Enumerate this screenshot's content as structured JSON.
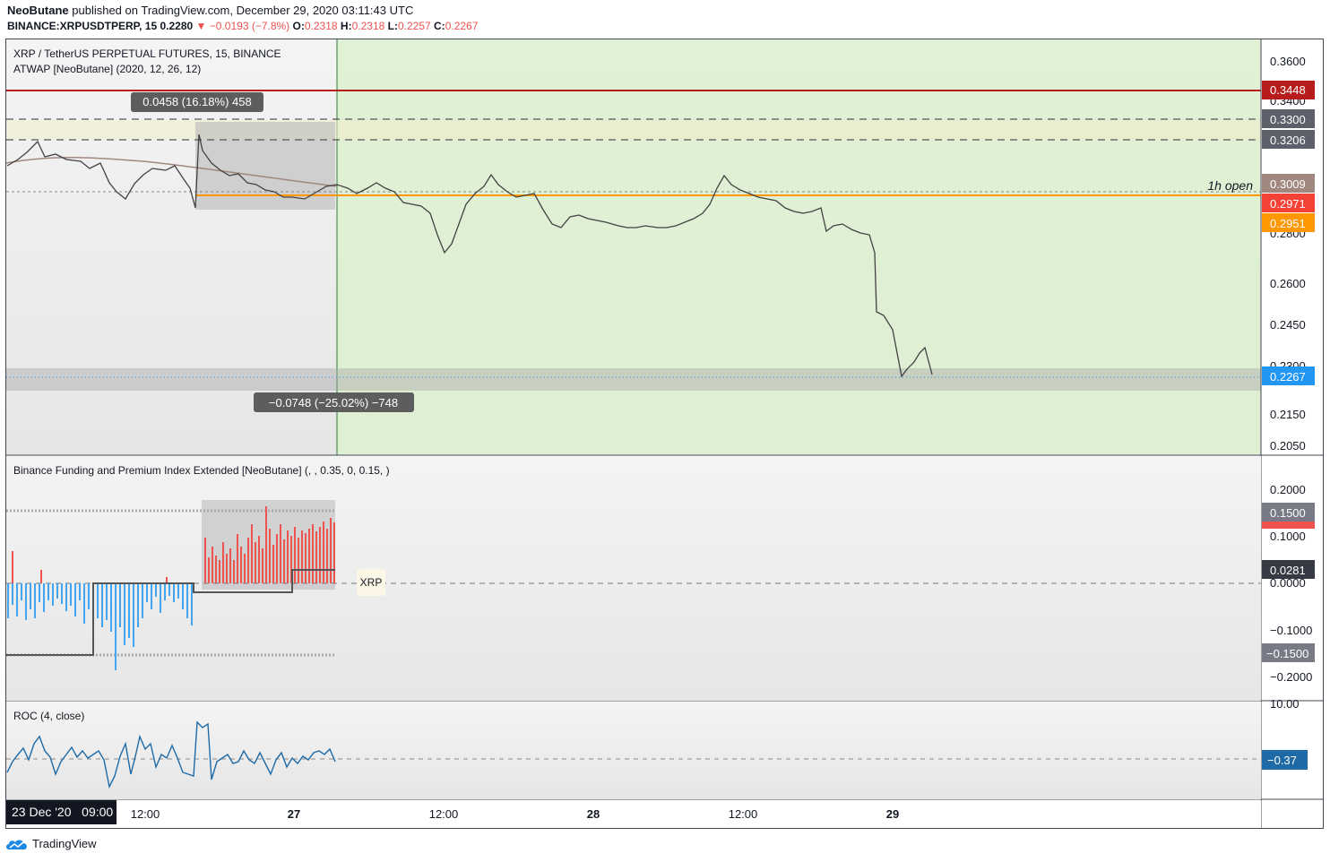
{
  "header": {
    "author": "NeoButane",
    "published_text": "published on TradingView.com, December 29, 2020 03:11:43 UTC",
    "symbol": "BINANCE:XRPUSDTPERP, 15",
    "last": "0.2280",
    "change_arrow": "▼",
    "change": "−0.0193 (−7.8%)",
    "o_label": "O:",
    "o": "0.2318",
    "h_label": "H:",
    "h": "0.2318",
    "l_label": "L:",
    "l": "0.2257",
    "c_label": "C:",
    "c": "0.2267"
  },
  "main_pane": {
    "title": "XRP / TetherUS PERPETUAL FUTURES, 15, BINANCE",
    "indicator": "ATWAP [NeoButane] (2020, 12, 26, 12)",
    "measure_top": "0.0458 (16.18%) 458",
    "measure_bottom": "−0.0748 (−25.02%) −748",
    "open_label": "1h open",
    "price_axis": [
      "0.3600",
      "0.3400",
      "0.2800",
      "0.2600",
      "0.2450",
      "0.2300",
      "0.2150",
      "0.2050"
    ],
    "badges": [
      {
        "value": "0.3448",
        "color": "#b71c1c"
      },
      {
        "value": "0.3300",
        "color": "#5d606b"
      },
      {
        "value": "0.3206",
        "color": "#5d606b"
      },
      {
        "value": "0.3009",
        "color": "#a1887f"
      },
      {
        "value": "0.2971",
        "color": "#f44336"
      },
      {
        "value": "0.2951",
        "color": "#ff9800"
      },
      {
        "value": "0.2267",
        "color": "#2196f3"
      }
    ]
  },
  "funding_pane": {
    "title": "Binance Funding and Premium Index Extended [NeoButane] (, , 0.35, 0, 0.15, )",
    "tag": "XRP",
    "axis": [
      "0.2000",
      "0.1000",
      "0.0000",
      "−0.1000",
      "−0.2000"
    ],
    "badges": [
      {
        "value": "0.1500",
        "color": "#787b86"
      },
      {
        "value": "0.0281",
        "color": "#363a45"
      },
      {
        "value": "−0.1500",
        "color": "#787b86"
      }
    ]
  },
  "roc_pane": {
    "title": "ROC (4, close)",
    "axis_top": "10.00",
    "badge": {
      "value": "−0.37",
      "color": "#1e6aa6"
    }
  },
  "time_axis": {
    "cursor_label": "23 Dec '20   09:00",
    "labels": [
      "12:00",
      "27",
      "12:00",
      "28",
      "12:00",
      "29"
    ]
  },
  "footer": {
    "brand": "TradingView"
  },
  "colors": {
    "bull": "#2e7d32",
    "bear": "#212121",
    "highlight": "#c8e6c9",
    "funding_pos": "#ef5350",
    "funding_neg": "#42a5f5",
    "roc": "#1e6aa6"
  }
}
